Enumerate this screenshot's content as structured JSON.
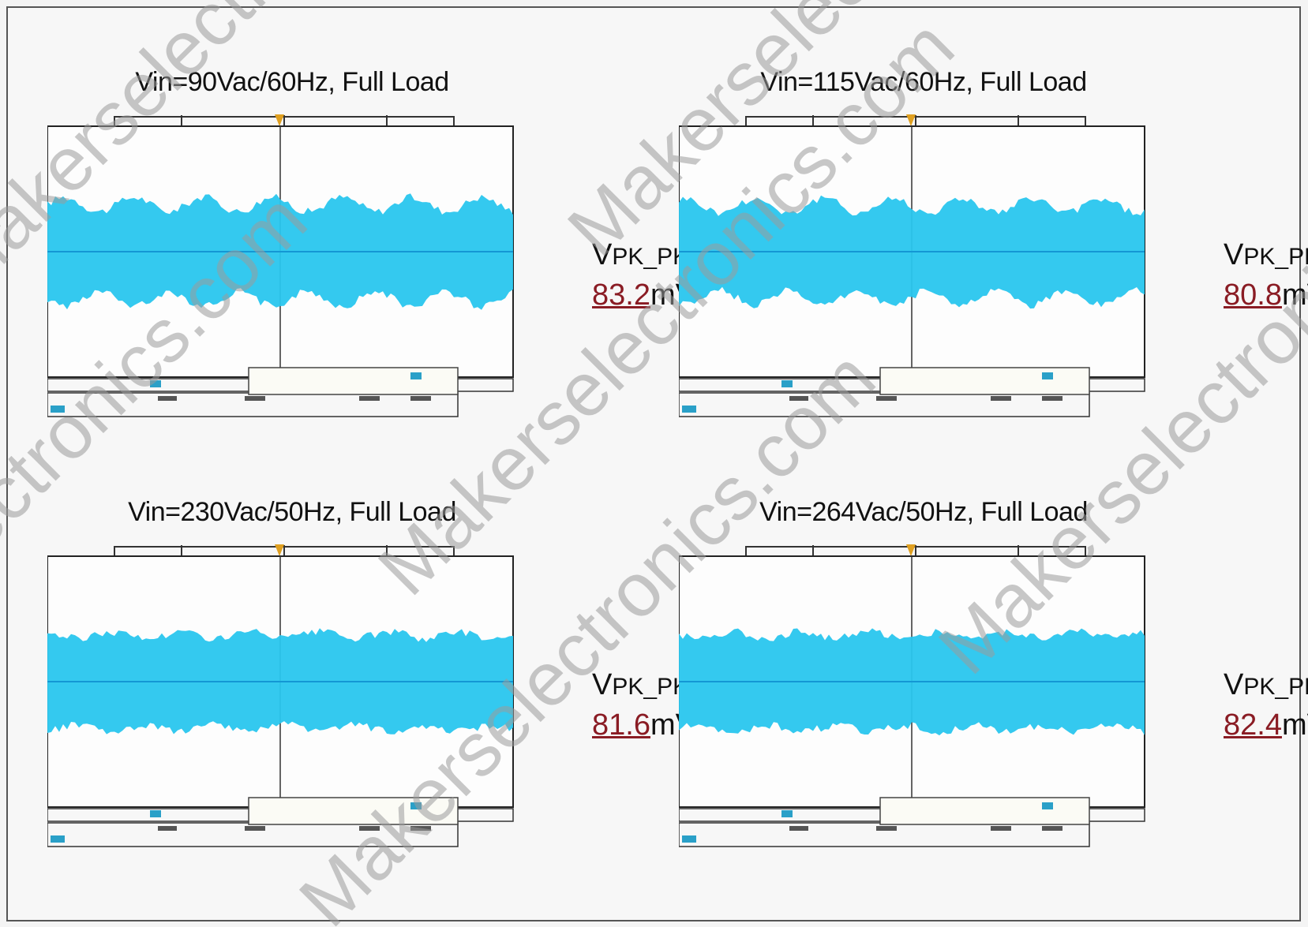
{
  "chart_data": [
    {
      "type": "line",
      "title": "Vin=90Vac/60Hz, Full Load",
      "measurement": {
        "label_main": "V",
        "label_sub": "PK_PK",
        "value": "83.2",
        "unit": "mV"
      },
      "vpp_mv": 83.2
    },
    {
      "type": "line",
      "title": "Vin=115Vac/60Hz, Full Load",
      "measurement": {
        "label_main": "V",
        "label_sub": "PK_PK",
        "value": "80.8",
        "unit": "mV"
      },
      "vpp_mv": 80.8
    },
    {
      "type": "line",
      "title": "Vin=230Vac/50Hz, Full Load",
      "measurement": {
        "label_main": "V",
        "label_sub": "PK_PK",
        "value": "81.6",
        "unit": "mV"
      },
      "vpp_mv": 81.6
    },
    {
      "type": "line",
      "title": "Vin=264Vac/50Hz, Full Load",
      "measurement": {
        "label_main": "V",
        "label_sub": "PK_PK",
        "value": "82.4",
        "unit": "mV"
      },
      "vpp_mv": 82.4
    }
  ],
  "colors": {
    "trace": "#29c6ee",
    "trace_dark": "#1497d4",
    "value_text": "#8a1c24",
    "watermark": "#9a9a9a"
  },
  "watermark_text": "Makerselectronics.com"
}
